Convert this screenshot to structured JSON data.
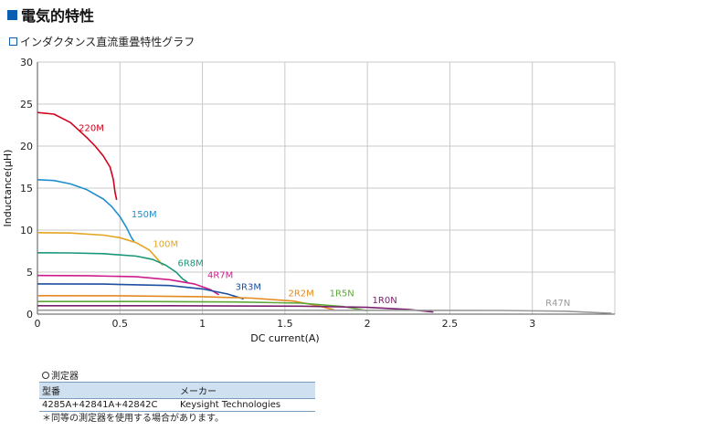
{
  "section_title": "電気的特性",
  "sub_title": "インダクタンス直流重畳特性グラフ",
  "chart_data": {
    "type": "line",
    "title": "インダクタンス直流重畳特性グラフ",
    "xlabel": "DC current(A)",
    "ylabel": "Inductance(μH)",
    "xlim": [
      0,
      3.5
    ],
    "ylim": [
      0,
      30
    ],
    "xticks": [
      "0",
      "0.5",
      "1",
      "1.5",
      "2",
      "2.5",
      "3"
    ],
    "yticks": [
      "0",
      "5",
      "10",
      "15",
      "20",
      "25",
      "30"
    ],
    "grid": true,
    "series": [
      {
        "name": "220M",
        "color": "#d0021b",
        "label_at": [
          0.25,
          21.8
        ],
        "x": [
          0,
          0.1,
          0.2,
          0.3,
          0.35,
          0.4,
          0.44,
          0.46,
          0.47,
          0.48
        ],
        "y": [
          24.0,
          23.8,
          22.8,
          21.0,
          20.0,
          18.8,
          17.5,
          16.0,
          14.5,
          13.6
        ]
      },
      {
        "name": "150M",
        "color": "#1f8fcf",
        "label_at": [
          0.57,
          11.5
        ],
        "x": [
          0,
          0.1,
          0.2,
          0.3,
          0.4,
          0.45,
          0.5,
          0.54,
          0.57,
          0.585
        ],
        "y": [
          16.0,
          15.9,
          15.5,
          14.8,
          13.7,
          12.8,
          11.6,
          10.3,
          9.1,
          8.7
        ]
      },
      {
        "name": "100M",
        "color": "#e5a520",
        "label_at": [
          0.7,
          8.0
        ],
        "x": [
          0,
          0.2,
          0.4,
          0.5,
          0.6,
          0.68,
          0.73,
          0.76
        ],
        "y": [
          9.7,
          9.65,
          9.4,
          9.1,
          8.5,
          7.6,
          6.5,
          5.8
        ]
      },
      {
        "name": "6R8M",
        "color": "#19967a",
        "label_at": [
          0.85,
          5.7
        ],
        "x": [
          0,
          0.2,
          0.4,
          0.6,
          0.7,
          0.78,
          0.84,
          0.88,
          0.91
        ],
        "y": [
          7.3,
          7.28,
          7.2,
          6.9,
          6.5,
          5.8,
          5.0,
          4.2,
          3.8
        ]
      },
      {
        "name": "4R7M",
        "color": "#cc1c8c",
        "label_at": [
          1.03,
          4.3
        ],
        "x": [
          0,
          0.3,
          0.6,
          0.8,
          0.95,
          1.05,
          1.1
        ],
        "y": [
          4.6,
          4.58,
          4.45,
          4.1,
          3.6,
          2.9,
          2.3
        ]
      },
      {
        "name": "3R3M",
        "color": "#1e4fa0",
        "label_at": [
          1.2,
          2.9
        ],
        "x": [
          0,
          0.4,
          0.8,
          1.0,
          1.15,
          1.25
        ],
        "y": [
          3.6,
          3.58,
          3.4,
          3.0,
          2.4,
          1.8
        ]
      },
      {
        "name": "2R2M",
        "color": "#e58a20",
        "label_at": [
          1.52,
          2.1
        ],
        "x": [
          0,
          0.5,
          1.0,
          1.3,
          1.55,
          1.7,
          1.8
        ],
        "y": [
          2.2,
          2.18,
          2.08,
          1.9,
          1.55,
          1.0,
          0.5
        ]
      },
      {
        "name": "1R5N",
        "color": "#5ea83a",
        "label_at": [
          1.77,
          2.1
        ],
        "x": [
          0,
          0.6,
          1.2,
          1.6,
          1.85,
          2.0
        ],
        "y": [
          1.5,
          1.5,
          1.45,
          1.3,
          0.9,
          0.4
        ]
      },
      {
        "name": "1R0N",
        "color": "#7a1f6e",
        "label_at": [
          2.03,
          1.3
        ],
        "x": [
          0,
          0.8,
          1.6,
          2.0,
          2.25,
          2.4
        ],
        "y": [
          1.0,
          1.0,
          0.95,
          0.8,
          0.55,
          0.25
        ]
      },
      {
        "name": "R47N",
        "color": "#9a9a9a",
        "label_at": [
          3.08,
          1.0
        ],
        "x": [
          0,
          1.0,
          2.0,
          2.8,
          3.2,
          3.48
        ],
        "y": [
          0.47,
          0.47,
          0.46,
          0.44,
          0.35,
          0.1
        ]
      }
    ]
  },
  "measurement": {
    "title": "測定器",
    "headers": [
      "型番",
      "メーカー"
    ],
    "row": [
      "4285A+42841A+42842C",
      "Keysight Technologies"
    ],
    "note": "＊同等の測定器を使用する場合があります。"
  }
}
